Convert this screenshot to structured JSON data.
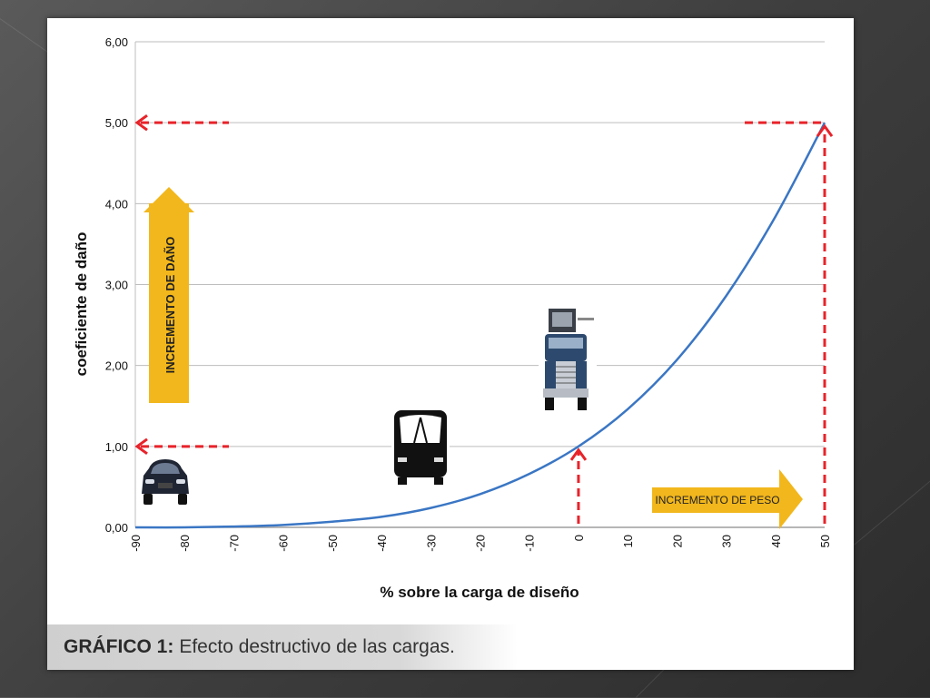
{
  "caption": {
    "label": "GRÁFICO 1:",
    "text": "Efecto destructivo de las cargas."
  },
  "chart_data": {
    "type": "line",
    "xlabel": "% sobre la carga de diseño",
    "ylabel": "coeficiente de daño",
    "xlim": [
      -90,
      50
    ],
    "ylim": [
      0,
      6
    ],
    "x_ticks": [
      "-90",
      "-80",
      "-70",
      "-60",
      "-50",
      "-40",
      "-30",
      "-20",
      "-10",
      "0",
      "10",
      "20",
      "30",
      "40",
      "50"
    ],
    "y_ticks": [
      "0,00",
      "1,00",
      "2,00",
      "3,00",
      "4,00",
      "5,00",
      "6,00"
    ],
    "grid": "horizontal",
    "series": [
      {
        "color": "#3a76c4",
        "x": [
          -90,
          -80,
          -70,
          -60,
          -50,
          -40,
          -30,
          -20,
          -10,
          0,
          10,
          20,
          30,
          40,
          50
        ],
        "y": [
          0.0,
          0.0,
          0.01,
          0.03,
          0.07,
          0.13,
          0.24,
          0.41,
          0.66,
          1.0,
          1.46,
          2.07,
          2.86,
          3.84,
          5.0
        ]
      }
    ],
    "annotations": {
      "damage_arrow": "INCREMENTO DE DAÑO",
      "weight_arrow": "INCREMENTO DE PESO"
    },
    "arrow_color": "#e8232a",
    "label_arrow_color": "#f2b71c"
  },
  "vehicles": [
    {
      "name": "car-icon"
    },
    {
      "name": "bus-icon"
    },
    {
      "name": "truck-icon"
    }
  ]
}
